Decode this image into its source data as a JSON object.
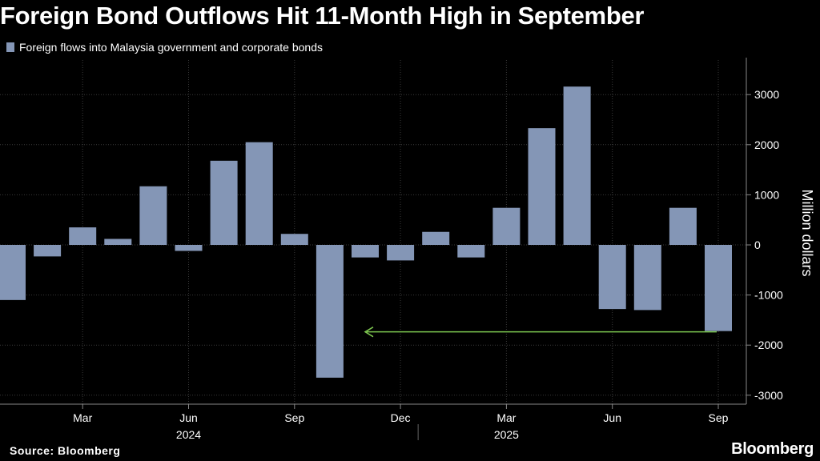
{
  "title": "Foreign Bond Outflows Hit 11-Month High in September",
  "source": "Source: Bloomberg",
  "brand": "Bloomberg",
  "colors": {
    "bar": "#8496b6",
    "grid": "#3a3a3a",
    "arrow": "#7ec850",
    "background": "#000000"
  },
  "chart_data": {
    "type": "bar",
    "ylabel": "Million dollars",
    "ylim": [
      -3000,
      3500
    ],
    "yticks": [
      -3000,
      -2000,
      -1000,
      0,
      1000,
      2000,
      3000
    ],
    "grid": true,
    "series": [
      {
        "name": "Foreign flows into Malaysia government and corporate bonds",
        "x": [
          "2024-01",
          "2024-02",
          "2024-03",
          "2024-04",
          "2024-05",
          "2024-06",
          "2024-07",
          "2024-08",
          "2024-09",
          "2024-10",
          "2024-11",
          "2024-12",
          "2025-01",
          "2025-02",
          "2025-03",
          "2025-04",
          "2025-05",
          "2025-06",
          "2025-07",
          "2025-08",
          "2025-09"
        ],
        "values": [
          -1100,
          -230,
          350,
          120,
          1170,
          -120,
          1680,
          2050,
          220,
          -2650,
          -250,
          -310,
          260,
          -250,
          740,
          2330,
          3160,
          -1280,
          -1300,
          740,
          -1720
        ]
      }
    ],
    "x_tick_labels": [
      "Mar",
      "Jun",
      "Sep",
      "Dec",
      "Mar",
      "Jun",
      "Sep"
    ],
    "x_tick_months": [
      "2024-03",
      "2024-06",
      "2024-09",
      "2024-12",
      "2025-03",
      "2025-06",
      "2025-09"
    ],
    "year_labels": [
      {
        "label": "2024",
        "month": "2024-06"
      },
      {
        "label": "2025",
        "month": "2025-03"
      }
    ],
    "annotation": {
      "type": "arrow",
      "from_month": "2025-09",
      "to_month": "2024-11",
      "y": -1720
    }
  }
}
